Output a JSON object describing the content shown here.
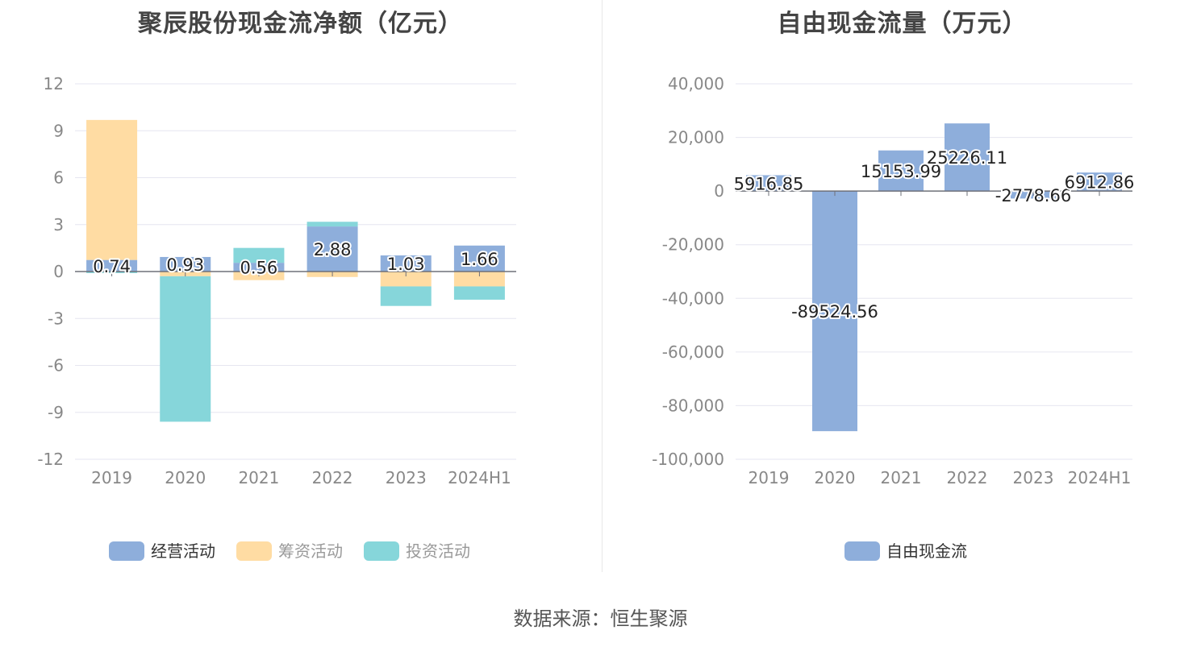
{
  "source_text": "数据来源：恒生聚源",
  "colors": {
    "operating": "#8eaedb",
    "financing": "#ffdca3",
    "investing": "#86d6da",
    "free": "#8eaedb"
  },
  "chart_data": [
    {
      "type": "bar",
      "stacked": true,
      "title": "聚辰股份现金流净额（亿元）",
      "categories": [
        "2019",
        "2020",
        "2021",
        "2022",
        "2023",
        "2024H1"
      ],
      "ylim": [
        -12,
        12
      ],
      "yticks": [
        "12",
        "9",
        "6",
        "3",
        "0",
        "-3",
        "-6",
        "-9",
        "-12"
      ],
      "series": [
        {
          "name": "经营活动",
          "values": [
            0.74,
            0.93,
            0.56,
            2.88,
            1.03,
            1.66
          ],
          "labels": [
            "0.74",
            "0.93",
            "0.56",
            "2.88",
            "1.03",
            "1.66"
          ]
        },
        {
          "name": "筹资活动",
          "values": [
            8.95,
            -0.3,
            -0.55,
            -0.35,
            -0.95,
            -0.95
          ]
        },
        {
          "name": "投资活动",
          "values": [
            -0.1,
            -9.3,
            0.95,
            0.3,
            -1.25,
            -0.85
          ]
        }
      ],
      "legend_position": "bottom",
      "grid": true
    },
    {
      "type": "bar",
      "title": "自由现金流量（万元）",
      "categories": [
        "2019",
        "2020",
        "2021",
        "2022",
        "2023",
        "2024H1"
      ],
      "ylim": [
        -100000,
        40000
      ],
      "yticks": [
        "40,000",
        "20,000",
        "0",
        "-20,000",
        "-40,000",
        "-60,000",
        "-80,000",
        "-100,000"
      ],
      "series": [
        {
          "name": "自由现金流",
          "values": [
            5916.85,
            -89524.56,
            15153.99,
            25226.11,
            -2778.66,
            6912.86
          ],
          "labels": [
            "5916.85",
            "-89524.56",
            "15153.99",
            "25226.11",
            "-2778.66",
            "6912.86"
          ]
        }
      ],
      "legend_position": "bottom",
      "grid": true
    }
  ]
}
